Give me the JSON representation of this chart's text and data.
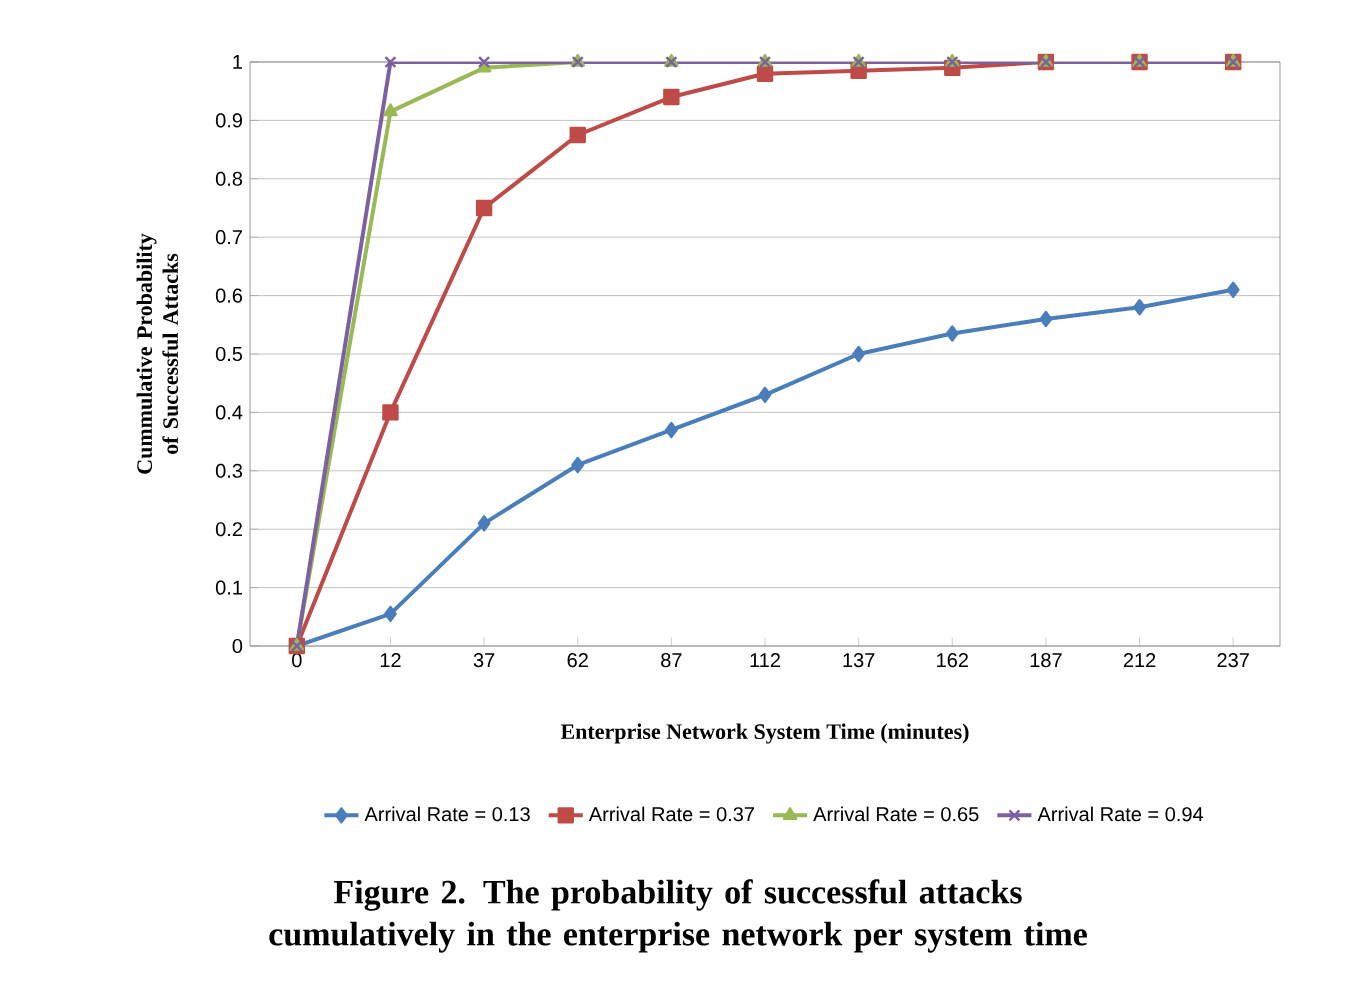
{
  "chart_data": {
    "type": "line",
    "xlabel": "Enterprise Network System Time (minutes)",
    "ylabel": "Cummulative Probability of Successful Attacks",
    "annotations": [
      "Figure 2. The probability of successful attacks cumulatively in the enterprise network per system time"
    ],
    "categories": [
      "0",
      "12",
      "37",
      "62",
      "87",
      "112",
      "137",
      "162",
      "187",
      "212",
      "237"
    ],
    "series": [
      {
        "name": "Arrival Rate = 0.13",
        "color": "#4a7ebb",
        "marker": "diamond",
        "values": [
          0,
          0.055,
          0.21,
          0.31,
          0.37,
          0.43,
          0.5,
          0.535,
          0.56,
          0.58,
          0.61
        ]
      },
      {
        "name": "Arrival Rate = 0.37",
        "color": "#be4b48",
        "marker": "square",
        "values": [
          0,
          0.4,
          0.75,
          0.875,
          0.94,
          0.98,
          0.985,
          0.99,
          1,
          1,
          1
        ]
      },
      {
        "name": "Arrival Rate = 0.65",
        "color": "#98b954",
        "marker": "triangle",
        "values": [
          0,
          0.915,
          0.99,
          1,
          1,
          1,
          1,
          1,
          1,
          1,
          1
        ]
      },
      {
        "name": "Arrival Rate = 0.94",
        "color": "#7d60a0",
        "marker": "cross",
        "values": [
          0,
          1,
          1,
          1,
          1,
          1,
          1,
          1,
          1,
          1,
          1
        ]
      }
    ],
    "ylim": [
      0,
      1
    ],
    "yticks": [
      0,
      0.1,
      0.2,
      0.3,
      0.4,
      0.5,
      0.6,
      0.7,
      0.8,
      0.9,
      1
    ],
    "grid": "y",
    "legend": "bottom",
    "line_style": "solid"
  }
}
